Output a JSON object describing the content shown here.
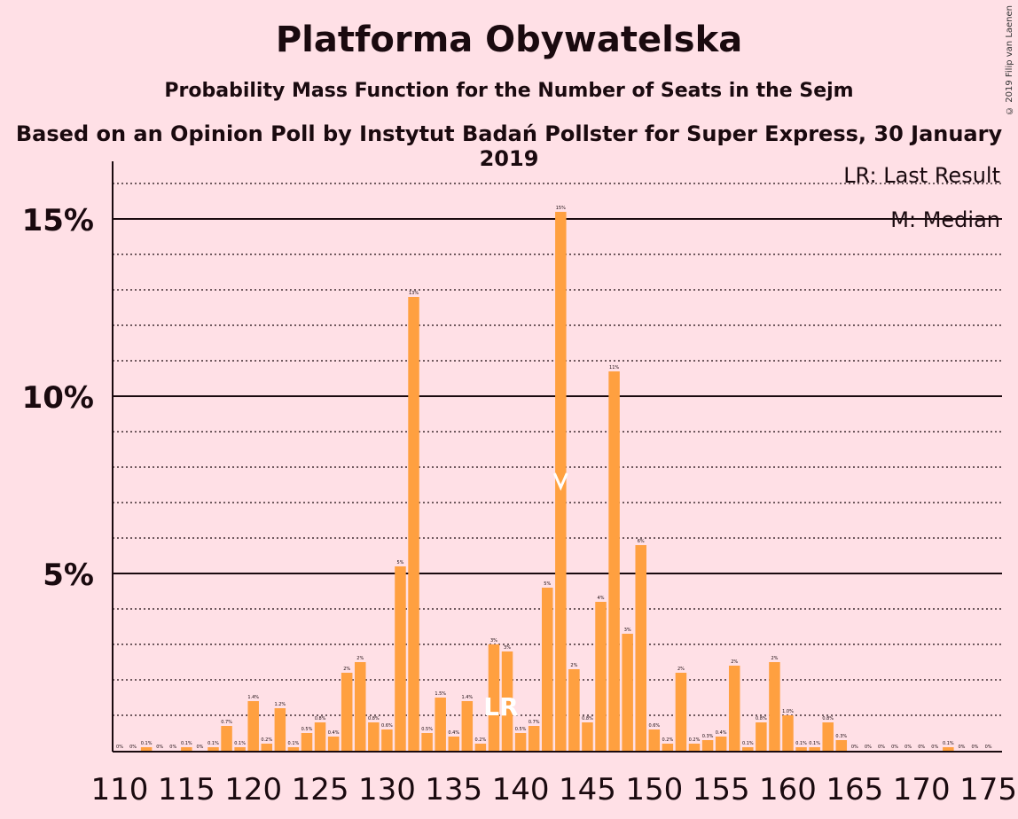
{
  "title": "Platforma Obywatelska",
  "subtitle": "Probability Mass Function for the Number of Seats in the Sejm",
  "subtitle2": "Based on an Opinion Poll by Instytut Badań Pollster for Super Express, 30 January 2019",
  "copyright": "© 2019 Filip van Laenen",
  "legend": {
    "last_result": "LR: Last Result",
    "median": "M: Median"
  },
  "colors": {
    "background": "#ffe0e6",
    "bar": "#ffa040",
    "axis": "#1a0a0f"
  },
  "chart_data": {
    "type": "bar",
    "x": [
      110,
      111,
      112,
      113,
      114,
      115,
      116,
      117,
      118,
      119,
      120,
      121,
      122,
      123,
      124,
      125,
      126,
      127,
      128,
      129,
      130,
      131,
      132,
      133,
      134,
      135,
      136,
      137,
      138,
      139,
      140,
      141,
      142,
      143,
      144,
      145,
      146,
      147,
      148,
      149,
      150,
      151,
      152,
      153,
      154,
      155,
      156,
      157,
      158,
      159,
      160,
      161,
      162,
      163,
      164,
      165,
      166,
      167,
      168,
      169,
      170,
      171,
      172,
      173,
      174,
      175
    ],
    "values": [
      0.0,
      0.0,
      0.1,
      0.0,
      0.0,
      0.1,
      0.0,
      0.1,
      0.7,
      0.1,
      1.4,
      0.2,
      1.2,
      0.1,
      0.5,
      0.8,
      0.4,
      2.2,
      2.5,
      0.8,
      0.6,
      5.2,
      12.8,
      0.5,
      1.5,
      0.4,
      1.4,
      0.2,
      3.0,
      2.8,
      0.5,
      0.7,
      4.6,
      15.2,
      2.3,
      0.8,
      4.2,
      10.7,
      3.3,
      5.8,
      0.6,
      0.2,
      2.2,
      0.2,
      0.3,
      0.4,
      2.4,
      0.1,
      0.8,
      2.5,
      1.0,
      0.1,
      0.1,
      0.8,
      0.3,
      0.0,
      0.0,
      0.0,
      0.0,
      0.0,
      0.0,
      0.0,
      0.1,
      0.0,
      0.0,
      0.0
    ],
    "labels": [
      "0%",
      "0%",
      "0.1%",
      "0%",
      "0%",
      "0.1%",
      "0%",
      "0.1%",
      "0.7%",
      "0.1%",
      "1.4%",
      "0.2%",
      "1.2%",
      "0.1%",
      "0.5%",
      "0.8%",
      "0.4%",
      "2%",
      "2%",
      "0.8%",
      "0.6%",
      "5%",
      "13%",
      "0.5%",
      "1.5%",
      "0.4%",
      "1.4%",
      "0.2%",
      "3%",
      "3%",
      "0.5%",
      "0.7%",
      "5%",
      "15%",
      "2%",
      "0.8%",
      "4%",
      "11%",
      "3%",
      "6%",
      "0.6%",
      "0.2%",
      "2%",
      "0.2%",
      "0.3%",
      "0.4%",
      "2%",
      "0.1%",
      "0.8%",
      "2%",
      "1.0%",
      "0.1%",
      "0.1%",
      "0.8%",
      "0.3%",
      "0%",
      "0%",
      "0%",
      "0%",
      "0%",
      "0%",
      "0%",
      "0.1%",
      "0%",
      "0%",
      "0%"
    ],
    "x_ticks": [
      110,
      115,
      120,
      125,
      130,
      135,
      140,
      145,
      150,
      155,
      160,
      165,
      170,
      175
    ],
    "x_tick_labels": [
      "110",
      "115",
      "120",
      "125",
      "130",
      "135",
      "140",
      "145",
      "150",
      "155",
      "160",
      "165",
      "170",
      "175"
    ],
    "y_ticks": [
      5,
      10,
      15
    ],
    "y_tick_labels": [
      "5%",
      "10%",
      "15%"
    ],
    "ylim": [
      0,
      16.6
    ],
    "xlabel": "",
    "ylabel": "",
    "last_result_seat": 138,
    "last_result_marker": "LR",
    "median_seat": 143,
    "median_marker": "M"
  }
}
